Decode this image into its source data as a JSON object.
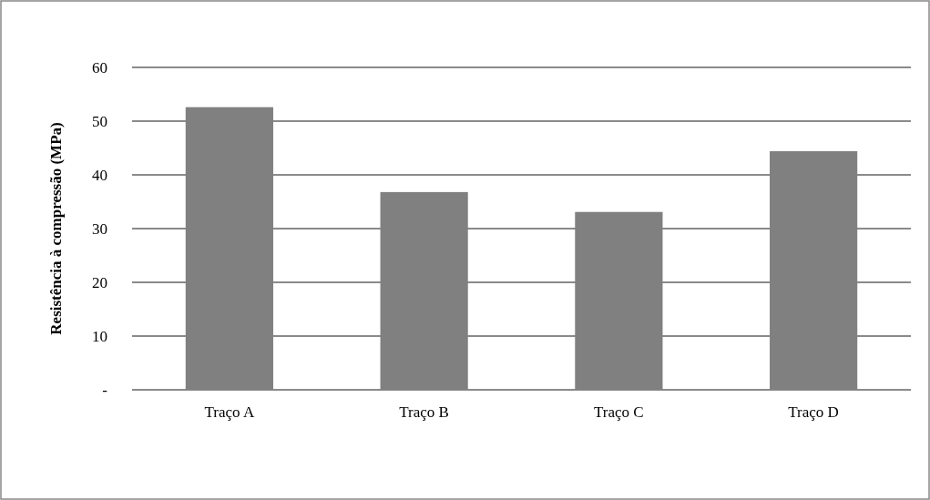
{
  "chart_data": {
    "type": "bar",
    "ylabel": "Resistência à compressão  (MPa)",
    "categories": [
      "Traço A",
      "Traço B",
      "Traço C",
      "Traço D"
    ],
    "values": [
      52.6,
      36.8,
      33.1,
      44.4
    ],
    "color": "#808080",
    "ylim": [
      0,
      60
    ],
    "yticks": [
      {
        "value": 0,
        "label": "-"
      },
      10,
      20,
      30,
      40,
      50,
      60
    ],
    "grid": "y"
  }
}
